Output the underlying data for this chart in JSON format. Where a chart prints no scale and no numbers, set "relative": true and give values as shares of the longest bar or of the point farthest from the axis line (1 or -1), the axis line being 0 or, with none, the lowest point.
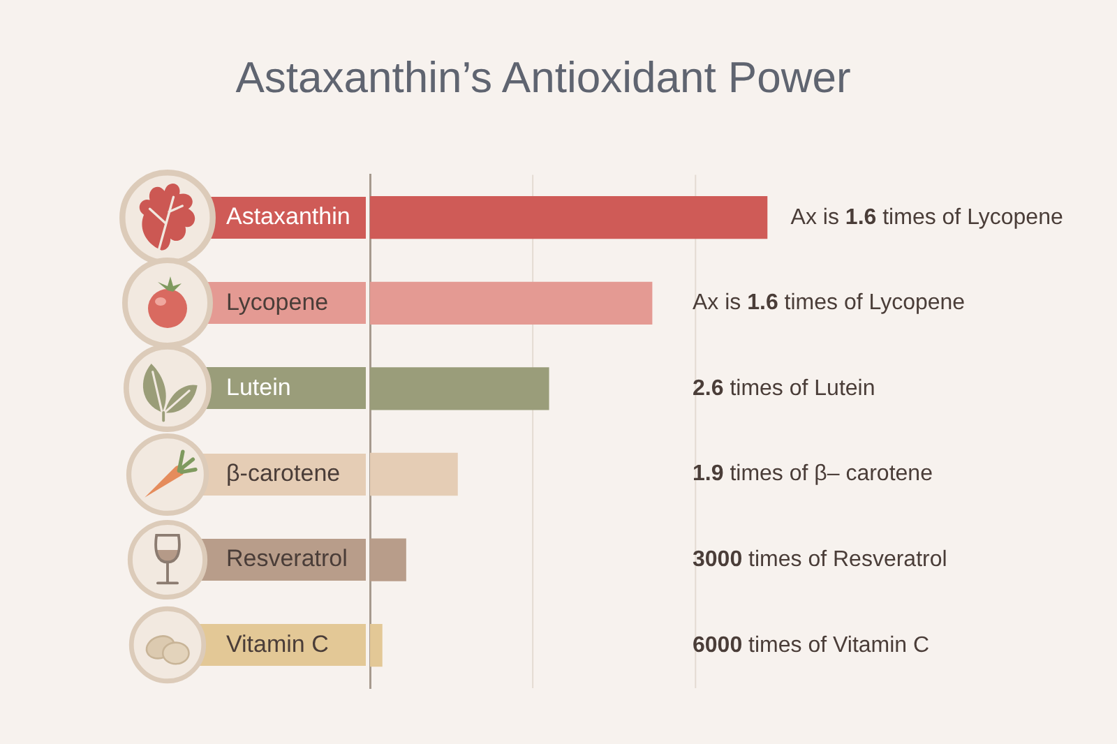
{
  "chart_data": {
    "type": "bar",
    "title": "Astaxanthin’s Antioxidant Power",
    "orientation": "horizontal",
    "relative": true,
    "categories": [
      "Astaxanthin",
      "Lycopene",
      "Lutein",
      "β-carotene",
      "Resveratrol",
      "Vitamin C"
    ],
    "values": [
      1,
      0.71,
      0.45,
      0.22,
      0.09,
      0.03
    ],
    "colors": [
      "#cf5b57",
      "#e49a93",
      "#9a9d7a",
      "#e5cdb5",
      "#b89d8a",
      "#e3c896"
    ],
    "ref_lines": [
      {
        "axis": "x",
        "value": 0.41,
        "color": "#e4dbd2"
      },
      {
        "axis": "x",
        "value": 0.82,
        "color": "#e4dbd2"
      }
    ],
    "annotations": [
      "Ax is 1.6 times of Lycopene",
      "Ax is 1.6 times of Lycopene",
      "2.6 times of Lutein",
      "1.9 times of β– carotene",
      "3000 times of Resveratrol",
      "6000 times of Vitamin C"
    ]
  }
}
